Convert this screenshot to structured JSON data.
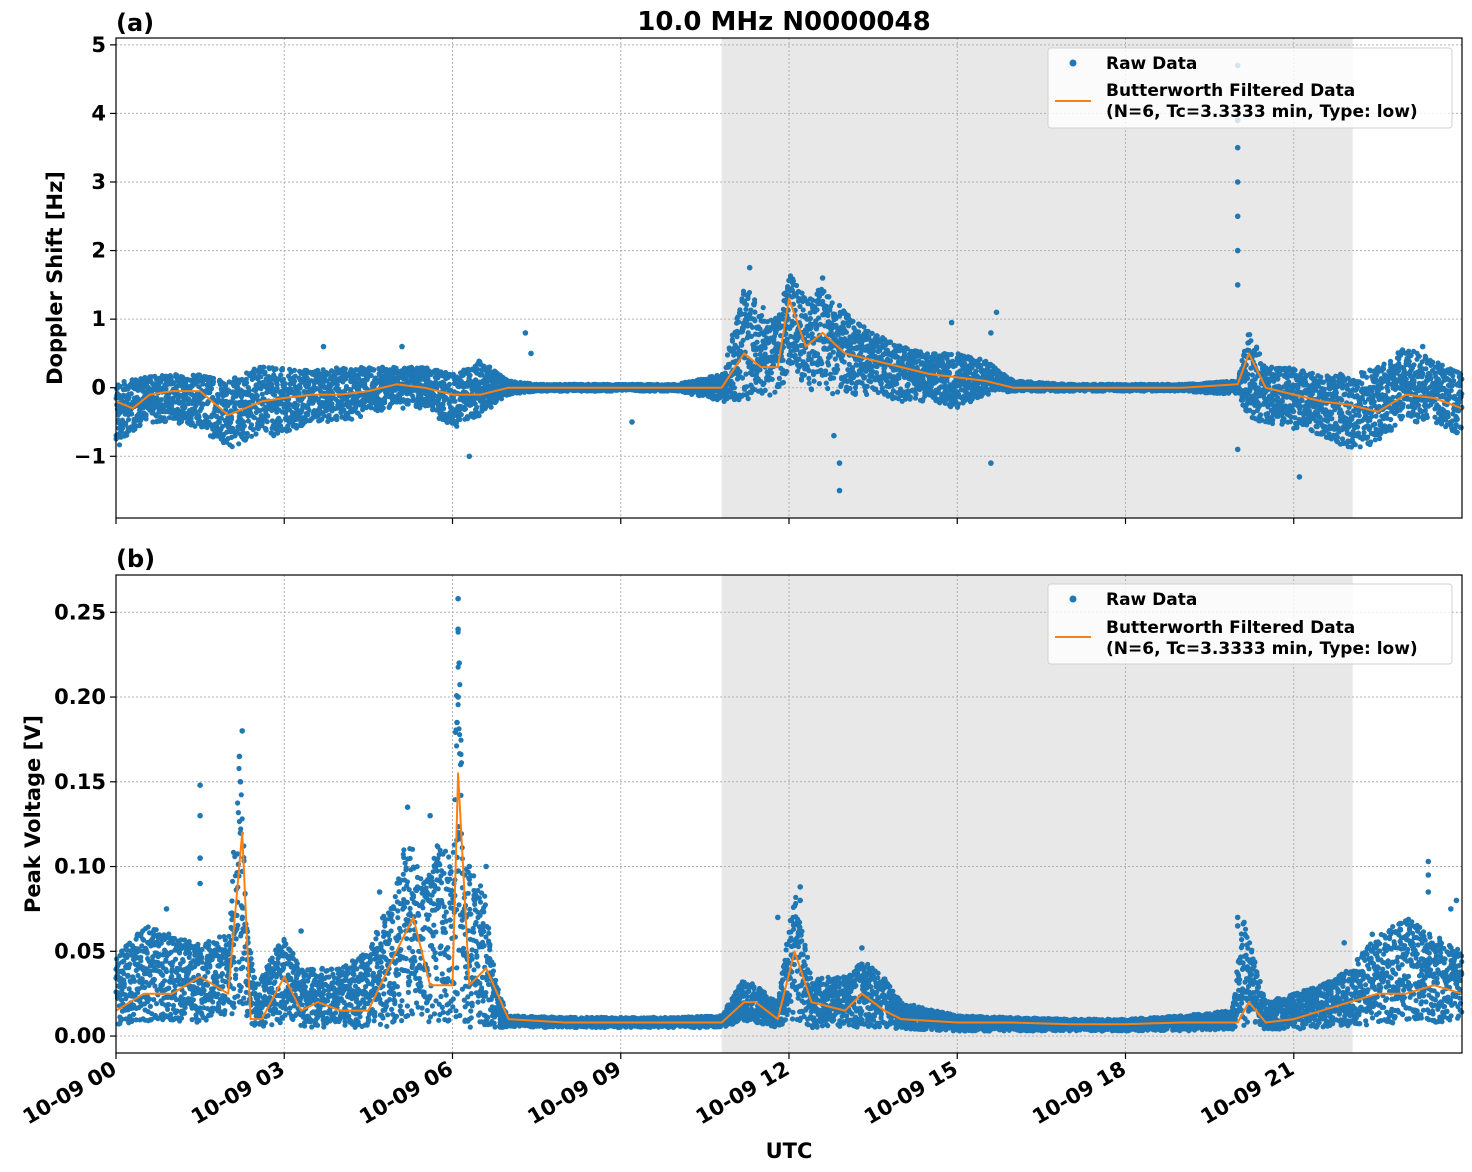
{
  "figure": {
    "title": "10.0 MHz N0000048",
    "xlabel": "UTC",
    "x_ticks": [
      "10-09 00",
      "10-09 03",
      "10-09 06",
      "10-09 09",
      "10-09 12",
      "10-09 15",
      "10-09 18",
      "10-09 21"
    ],
    "x_tick_hours": [
      0,
      3,
      6,
      9,
      12,
      15,
      18,
      21
    ],
    "x_range_hours": [
      0,
      24
    ],
    "shaded_interval_hours": [
      10.8,
      22.05
    ],
    "colors": {
      "raw": "#1f77b4",
      "filtered": "#ff7f0e",
      "shade": "#e8e8e8"
    }
  },
  "legend": {
    "raw_label": "Raw Data",
    "filtered_label_line1": "Butterworth Filtered Data",
    "filtered_label_line2": "(N=6, Tc=3.3333 min, Type: low)"
  },
  "chart_data": [
    {
      "type": "scatter",
      "panel": "(a)",
      "ylabel": "Doppler Shift [Hz]",
      "ylim": [
        -1.9,
        5.1
      ],
      "y_ticks": [
        -1,
        0,
        1,
        2,
        3,
        4,
        5
      ],
      "y_tick_labels": [
        "−1",
        "0",
        "1",
        "2",
        "3",
        "4",
        "5"
      ],
      "series": [
        {
          "name": "Butterworth Filtered Data",
          "x_hours": [
            0,
            0.3,
            0.6,
            1,
            1.5,
            2,
            2.3,
            2.6,
            3,
            3.5,
            4,
            4.5,
            5,
            5.5,
            6,
            6.5,
            7,
            8,
            9,
            10,
            10.8,
            11.2,
            11.5,
            11.8,
            12,
            12.3,
            12.6,
            13,
            13.5,
            14,
            14.5,
            15,
            15.5,
            16,
            17,
            18,
            19,
            20,
            20.2,
            20.5,
            21,
            21.5,
            22,
            22.5,
            23,
            23.5,
            24
          ],
          "y": [
            -0.2,
            -0.3,
            -0.1,
            -0.05,
            -0.05,
            -0.4,
            -0.3,
            -0.2,
            -0.15,
            -0.1,
            -0.1,
            -0.05,
            0.05,
            0.0,
            -0.1,
            -0.1,
            0.0,
            0.0,
            0.0,
            0.0,
            0.0,
            0.5,
            0.3,
            0.3,
            1.3,
            0.6,
            0.8,
            0.5,
            0.4,
            0.3,
            0.2,
            0.15,
            0.1,
            0.0,
            0.0,
            0.0,
            0.0,
            0.05,
            0.5,
            0.0,
            -0.1,
            -0.2,
            -0.25,
            -0.35,
            -0.1,
            -0.15,
            -0.3
          ]
        },
        {
          "name": "Raw Data",
          "envelope_hours": [
            0,
            0.5,
            1,
            1.5,
            2,
            2.5,
            3,
            3.5,
            4,
            4.5,
            5,
            5.5,
            6,
            6.5,
            7,
            7.5,
            8,
            9,
            10,
            10.8,
            11.2,
            11.5,
            11.8,
            12,
            12.3,
            12.6,
            13,
            13.5,
            14,
            14.5,
            15,
            15.5,
            16,
            17,
            18,
            19,
            20,
            20.2,
            20.5,
            21,
            21.5,
            22,
            22.5,
            23,
            23.5,
            24
          ],
          "upper": [
            0.1,
            0.15,
            0.2,
            0.2,
            0.1,
            0.3,
            0.3,
            0.25,
            0.3,
            0.3,
            0.3,
            0.3,
            0.2,
            0.4,
            0.1,
            0.05,
            0.05,
            0.05,
            0.05,
            0.2,
            1.5,
            1.2,
            1.0,
            1.7,
            1.3,
            1.5,
            1.1,
            0.8,
            0.6,
            0.5,
            0.5,
            0.4,
            0.1,
            0.05,
            0.05,
            0.05,
            0.1,
            0.9,
            0.3,
            0.3,
            0.2,
            0.2,
            0.3,
            0.6,
            0.4,
            0.2
          ],
          "lower": [
            -0.9,
            -0.5,
            -0.5,
            -0.6,
            -0.9,
            -0.7,
            -0.7,
            -0.5,
            -0.5,
            -0.4,
            -0.3,
            -0.3,
            -0.6,
            -0.4,
            -0.1,
            -0.05,
            -0.05,
            -0.05,
            -0.05,
            -0.2,
            -0.2,
            -0.1,
            -0.2,
            0.3,
            0.0,
            -0.1,
            -0.1,
            -0.1,
            -0.2,
            -0.2,
            -0.3,
            -0.1,
            -0.05,
            -0.05,
            -0.05,
            -0.05,
            -0.1,
            -0.5,
            -0.5,
            -0.6,
            -0.7,
            -0.9,
            -0.8,
            -0.5,
            -0.5,
            -0.7
          ],
          "outliers": [
            [
              20.0,
              4.7
            ],
            [
              20.0,
              3.9
            ],
            [
              20.0,
              3.5
            ],
            [
              20.0,
              3.0
            ],
            [
              20.0,
              2.5
            ],
            [
              20.0,
              2.0
            ],
            [
              20.0,
              1.5
            ],
            [
              12.9,
              -1.5
            ],
            [
              12.9,
              -1.1
            ],
            [
              12.8,
              -0.7
            ],
            [
              15.7,
              1.1
            ],
            [
              15.6,
              0.8
            ],
            [
              15.6,
              -1.1
            ],
            [
              7.3,
              0.8
            ],
            [
              7.4,
              0.5
            ],
            [
              3.7,
              0.6
            ],
            [
              5.1,
              0.6
            ],
            [
              11.3,
              1.75
            ],
            [
              12.6,
              1.6
            ],
            [
              14.9,
              0.95
            ],
            [
              20.0,
              -0.9
            ],
            [
              21.1,
              -1.3
            ],
            [
              23.3,
              0.6
            ],
            [
              6.3,
              -1.0
            ],
            [
              9.2,
              -0.5
            ]
          ]
        }
      ]
    },
    {
      "type": "scatter",
      "panel": "(b)",
      "ylabel": "Peak Voltage [V]",
      "ylim": [
        -0.01,
        0.272
      ],
      "y_ticks": [
        0.0,
        0.05,
        0.1,
        0.15,
        0.2,
        0.25
      ],
      "y_tick_labels": [
        "0.00",
        "0.05",
        "0.10",
        "0.15",
        "0.20",
        "0.25"
      ],
      "series": [
        {
          "name": "Butterworth Filtered Data",
          "x_hours": [
            0,
            0.5,
            1,
            1.5,
            2,
            2.25,
            2.4,
            2.6,
            3,
            3.3,
            3.6,
            4,
            4.5,
            5,
            5.3,
            5.6,
            6,
            6.1,
            6.3,
            6.6,
            7,
            8,
            9,
            10,
            10.8,
            11.2,
            11.4,
            11.8,
            12.1,
            12.4,
            13,
            13.3,
            13.7,
            14,
            15,
            16,
            17,
            18,
            19,
            20,
            20.2,
            20.5,
            21,
            21.5,
            22,
            22.5,
            23,
            23.5,
            24
          ],
          "y": [
            0.015,
            0.025,
            0.025,
            0.035,
            0.025,
            0.12,
            0.01,
            0.01,
            0.035,
            0.015,
            0.02,
            0.015,
            0.015,
            0.05,
            0.07,
            0.03,
            0.03,
            0.155,
            0.03,
            0.04,
            0.01,
            0.008,
            0.008,
            0.008,
            0.008,
            0.02,
            0.02,
            0.01,
            0.05,
            0.02,
            0.015,
            0.025,
            0.015,
            0.01,
            0.008,
            0.008,
            0.007,
            0.007,
            0.008,
            0.008,
            0.02,
            0.008,
            0.01,
            0.015,
            0.02,
            0.025,
            0.025,
            0.03,
            0.025
          ]
        },
        {
          "name": "Raw Data",
          "envelope_hours": [
            0,
            0.3,
            0.6,
            1,
            1.5,
            2,
            2.2,
            2.35,
            2.5,
            3,
            3.3,
            3.6,
            4,
            4.5,
            5,
            5.2,
            5.5,
            5.8,
            6.0,
            6.1,
            6.2,
            6.5,
            6.8,
            7,
            8,
            9,
            10,
            10.8,
            11.2,
            11.4,
            11.8,
            12.1,
            12.4,
            13,
            13.3,
            13.7,
            14,
            15,
            16,
            17,
            18,
            19,
            19.9,
            20.1,
            20.5,
            21,
            21.5,
            22,
            22.5,
            23,
            23.5,
            24
          ],
          "upper": [
            0.045,
            0.06,
            0.065,
            0.06,
            0.055,
            0.06,
            0.18,
            0.06,
            0.03,
            0.06,
            0.04,
            0.04,
            0.04,
            0.05,
            0.09,
            0.12,
            0.09,
            0.12,
            0.1,
            0.255,
            0.1,
            0.1,
            0.03,
            0.012,
            0.011,
            0.011,
            0.011,
            0.012,
            0.035,
            0.03,
            0.02,
            0.085,
            0.035,
            0.035,
            0.045,
            0.035,
            0.02,
            0.012,
            0.011,
            0.01,
            0.01,
            0.012,
            0.015,
            0.07,
            0.02,
            0.025,
            0.03,
            0.04,
            0.06,
            0.07,
            0.06,
            0.05
          ],
          "lower": [
            0.005,
            0.008,
            0.008,
            0.008,
            0.008,
            0.008,
            0.02,
            0.005,
            0.005,
            0.008,
            0.005,
            0.005,
            0.005,
            0.005,
            0.006,
            0.008,
            0.008,
            0.008,
            0.005,
            0.008,
            0.005,
            0.005,
            0.004,
            0.005,
            0.005,
            0.005,
            0.005,
            0.005,
            0.008,
            0.008,
            0.005,
            0.01,
            0.005,
            0.005,
            0.005,
            0.005,
            0.004,
            0.003,
            0.003,
            0.003,
            0.003,
            0.003,
            0.004,
            0.006,
            0.004,
            0.004,
            0.005,
            0.006,
            0.007,
            0.008,
            0.008,
            0.008
          ],
          "outliers": [
            [
              1.5,
              0.148
            ],
            [
              1.5,
              0.13
            ],
            [
              1.5,
              0.105
            ],
            [
              1.5,
              0.09
            ],
            [
              2.25,
              0.18
            ],
            [
              2.2,
              0.165
            ],
            [
              2.22,
              0.15
            ],
            [
              5.2,
              0.135
            ],
            [
              5.6,
              0.13
            ],
            [
              6.1,
              0.258
            ],
            [
              6.1,
              0.24
            ],
            [
              6.12,
              0.22
            ],
            [
              6.1,
              0.2
            ],
            [
              6.08,
              0.185
            ],
            [
              6.3,
              0.1
            ],
            [
              6.6,
              0.1
            ],
            [
              4.7,
              0.085
            ],
            [
              3.3,
              0.062
            ],
            [
              0.9,
              0.075
            ],
            [
              12.2,
              0.088
            ],
            [
              12.2,
              0.08
            ],
            [
              11.8,
              0.07
            ],
            [
              13.3,
              0.052
            ],
            [
              20.0,
              0.07
            ],
            [
              20.0,
              0.065
            ],
            [
              23.4,
              0.103
            ],
            [
              23.4,
              0.095
            ],
            [
              23.4,
              0.085
            ],
            [
              23.9,
              0.08
            ],
            [
              23.8,
              0.075
            ],
            [
              22.9,
              0.063
            ],
            [
              22.4,
              0.06
            ],
            [
              21.9,
              0.055
            ]
          ]
        }
      ]
    }
  ]
}
